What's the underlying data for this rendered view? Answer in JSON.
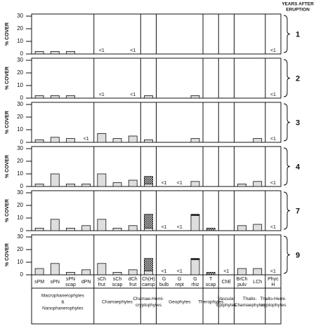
{
  "chart_data": {
    "type": "bar",
    "ylabel": "% COVER",
    "right_title": [
      "YEARS AFTER",
      "ERUPTION"
    ],
    "ylim": [
      0,
      30
    ],
    "yticks": [
      0,
      10,
      20,
      30
    ],
    "bar_color": "#dedede",
    "dark_color": "#222222",
    "groups": [
      {
        "label": [
          "Macrophanerophytes",
          "&",
          "Nanophanerophytes"
        ],
        "categories": [
          [
            "sPM"
          ],
          [
            "sPN"
          ],
          [
            "sPN",
            "scap"
          ],
          [
            "dPN"
          ]
        ]
      },
      {
        "label": [
          "Chamaephytes"
        ],
        "categories": [
          [
            "sCh",
            "frut"
          ],
          [
            "sCh",
            "scap"
          ],
          [
            "dCh",
            "frut"
          ]
        ]
      },
      {
        "label": [
          "Chamae-Hemi-",
          "cryptophytes"
        ],
        "categories": [
          [
            "Ch(H)",
            "caesp"
          ]
        ]
      },
      {
        "label": [
          "Geophytes"
        ],
        "categories": [
          [
            "G",
            "bulb"
          ],
          [
            "G",
            "rept"
          ],
          [
            "G",
            "rhiz"
          ]
        ]
      },
      {
        "label": [
          "Therophytes"
        ],
        "categories": [
          [
            "T",
            "scap"
          ]
        ]
      },
      {
        "label": [
          "Vascular",
          "Epiphytes"
        ],
        "categories": [
          [
            "ChE"
          ]
        ]
      },
      {
        "label": [
          "Thallo-",
          "Chamaephytes"
        ],
        "categories": [
          [
            "BrCh",
            "pulv"
          ],
          [
            "LCh"
          ]
        ]
      },
      {
        "label": [
          "Thallo-Hemi-",
          "cryptophytes"
        ],
        "categories": [
          [
            "Phyc",
            "H"
          ]
        ]
      }
    ],
    "panels": [
      {
        "label": "1",
        "values": [
          2,
          2,
          2,
          null,
          0.5,
          null,
          0.5,
          null,
          null,
          null,
          null,
          null,
          null,
          null,
          null,
          0.5
        ],
        "value_labels": [
          null,
          null,
          null,
          null,
          "<1",
          null,
          "<1",
          null,
          null,
          null,
          null,
          null,
          null,
          null,
          null,
          "<1"
        ],
        "dark_values": [
          null,
          null,
          null,
          null,
          null,
          null,
          null,
          null,
          null,
          null,
          null,
          null,
          null,
          null,
          null,
          null
        ]
      },
      {
        "label": "2",
        "values": [
          2,
          2,
          2,
          null,
          0.5,
          null,
          0.5,
          2,
          null,
          null,
          2,
          null,
          null,
          null,
          null,
          0.5
        ],
        "value_labels": [
          null,
          null,
          null,
          null,
          "<1",
          null,
          "<1",
          null,
          null,
          null,
          null,
          null,
          null,
          null,
          null,
          "<1"
        ],
        "dark_values": [
          null,
          null,
          null,
          null,
          null,
          null,
          null,
          null,
          null,
          null,
          null,
          null,
          null,
          null,
          null,
          null
        ]
      },
      {
        "label": "3",
        "values": [
          2,
          4,
          3,
          0.5,
          7,
          3,
          5,
          2,
          null,
          null,
          3,
          null,
          null,
          null,
          3,
          0.5
        ],
        "value_labels": [
          null,
          null,
          null,
          "<1",
          null,
          null,
          null,
          null,
          null,
          null,
          null,
          null,
          null,
          null,
          null,
          "<1"
        ],
        "dark_values": [
          null,
          null,
          null,
          null,
          null,
          null,
          null,
          null,
          null,
          null,
          null,
          null,
          null,
          null,
          null,
          null
        ]
      },
      {
        "label": "4",
        "values": [
          2,
          10,
          2,
          2,
          10,
          3,
          5,
          2,
          0.5,
          0.5,
          4,
          null,
          null,
          2,
          4,
          0.5
        ],
        "value_labels": [
          null,
          null,
          null,
          null,
          null,
          null,
          null,
          null,
          "<1",
          "<1",
          null,
          null,
          null,
          null,
          null,
          "<1"
        ],
        "dark_values": [
          null,
          null,
          null,
          null,
          null,
          null,
          null,
          6,
          null,
          null,
          null,
          null,
          null,
          null,
          null,
          null
        ]
      },
      {
        "label": "7",
        "values": [
          2,
          9,
          2,
          4,
          9,
          2,
          4,
          2,
          0.5,
          0.5,
          12,
          null,
          null,
          4,
          5,
          0.5
        ],
        "value_labels": [
          null,
          null,
          null,
          null,
          null,
          null,
          null,
          null,
          "<1",
          "<1",
          null,
          null,
          null,
          null,
          null,
          "<1"
        ],
        "dark_values": [
          null,
          null,
          null,
          null,
          null,
          null,
          null,
          11,
          null,
          null,
          1,
          2,
          null,
          null,
          null,
          null
        ]
      },
      {
        "label": "9",
        "values": [
          5,
          9,
          2,
          4,
          9,
          2,
          4,
          3,
          0.5,
          0.5,
          12,
          null,
          0.5,
          5,
          5,
          0.5
        ],
        "value_labels": [
          null,
          null,
          null,
          null,
          null,
          null,
          null,
          null,
          "<1",
          "<1",
          null,
          null,
          "<1",
          null,
          null,
          "<1"
        ],
        "dark_values": [
          null,
          null,
          null,
          null,
          null,
          null,
          null,
          10,
          null,
          null,
          1,
          2,
          null,
          null,
          null,
          null
        ]
      }
    ]
  }
}
